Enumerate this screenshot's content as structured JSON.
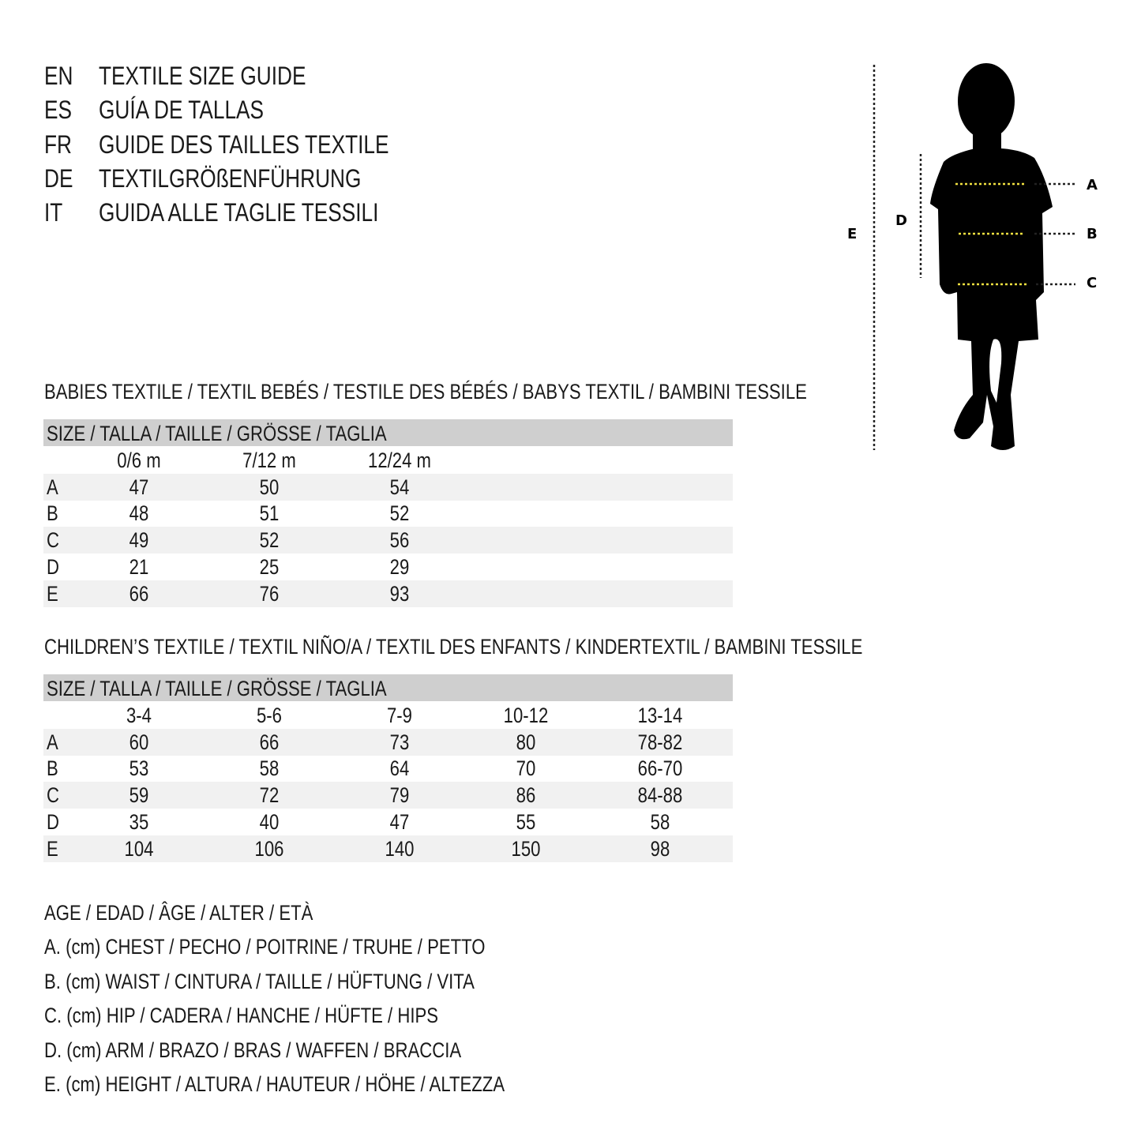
{
  "titles": [
    {
      "code": "EN",
      "text": "TEXTILE SIZE GUIDE"
    },
    {
      "code": "ES",
      "text": "GUÍA DE TALLAS"
    },
    {
      "code": "FR",
      "text": "GUIDE DES TAILLES TEXTILE"
    },
    {
      "code": "DE",
      "text": "TEXTILGRÖßENFÜHRUNG"
    },
    {
      "code": "IT",
      "text": "GUIDA ALLE TAGLIE TESSILI"
    }
  ],
  "figure": {
    "labels": {
      "A": "A",
      "B": "B",
      "C": "C",
      "D": "D",
      "E": "E"
    },
    "accent_color": "#f0e040"
  },
  "babies": {
    "title": "BABIES TEXTILE / TEXTIL BEBÉS / TESTILE DES BÉBÉS / BABYS TEXTIL / BAMBINI TESSILE",
    "header": "SIZE / TALLA / TAILLE / GRÖSSE / TAGLIA",
    "columns": [
      "0/6 m",
      "7/12 m",
      "12/24 m"
    ],
    "rows": [
      {
        "label": "A",
        "values": [
          "47",
          "50",
          "54"
        ]
      },
      {
        "label": "B",
        "values": [
          "48",
          "51",
          "52"
        ]
      },
      {
        "label": "C",
        "values": [
          "49",
          "52",
          "56"
        ]
      },
      {
        "label": "D",
        "values": [
          "21",
          "25",
          "29"
        ]
      },
      {
        "label": "E",
        "values": [
          "66",
          "76",
          "93"
        ]
      }
    ]
  },
  "children": {
    "title": "CHILDREN’S TEXTILE / TEXTIL NIÑO/A / TEXTIL DES ENFANTS / KINDERTEXTIL / BAMBINI TESSILE",
    "header": "SIZE / TALLA / TAILLE / GRÖSSE / TAGLIA",
    "columns": [
      "3-4",
      "5-6",
      "7-9",
      "10-12",
      "13-14"
    ],
    "rows": [
      {
        "label": "A",
        "values": [
          "60",
          "66",
          "73",
          "80",
          "78-82"
        ]
      },
      {
        "label": "B",
        "values": [
          "53",
          "58",
          "64",
          "70",
          "66-70"
        ]
      },
      {
        "label": "C",
        "values": [
          "59",
          "72",
          "79",
          "86",
          "84-88"
        ]
      },
      {
        "label": "D",
        "values": [
          "35",
          "40",
          "47",
          "55",
          "58"
        ]
      },
      {
        "label": "E",
        "values": [
          "104",
          "106",
          "140",
          "150",
          "98"
        ]
      }
    ]
  },
  "legend": [
    "AGE / EDAD / ÂGE / ALTER / ETÀ",
    "A. (cm) CHEST / PECHO / POITRINE / TRUHE / PETTO",
    "B. (cm) WAIST / CINTURA / TAILLE / HÜFTUNG / VITA",
    "C. (cm) HIP / CADERA / HANCHE / HÜFTE / HIPS",
    "D. (cm) ARM / BRAZO / BRAS / WAFFEN / BRACCIA",
    "E. (cm) HEIGHT / ALTURA / HAUTEUR / HÖHE / ALTEZZA"
  ]
}
